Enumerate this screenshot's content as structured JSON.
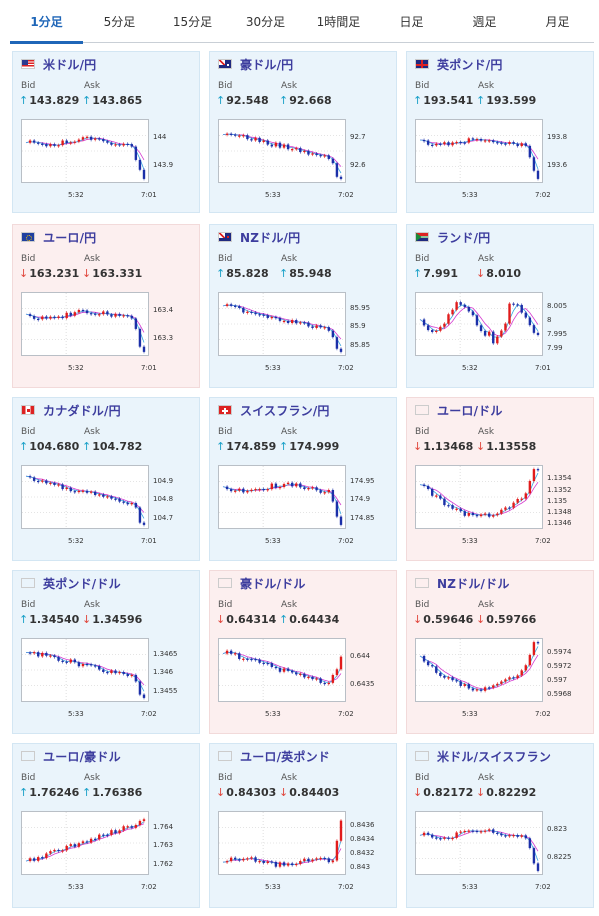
{
  "tabs": [
    {
      "label": "1分足",
      "active": true
    },
    {
      "label": "5分足",
      "active": false
    },
    {
      "label": "15分足",
      "active": false
    },
    {
      "label": "30分足",
      "active": false
    },
    {
      "label": "1時間足",
      "active": false
    },
    {
      "label": "日足",
      "active": false
    },
    {
      "label": "週足",
      "active": false
    },
    {
      "label": "月足",
      "active": false
    }
  ],
  "labels": {
    "bid": "Bid",
    "ask": "Ask"
  },
  "colors": {
    "up_arrow": "#1aa0c8",
    "down_arrow": "#e0463c",
    "up_bg": "#eaf4fb",
    "down_bg": "#fcefef",
    "candle_up": "#e11b1b",
    "candle_down": "#1b2fa8",
    "ma": "#d43bd0",
    "ma2": "#3aa6e0"
  },
  "cards": [
    {
      "pair": "米ドル/円",
      "flag": "us",
      "dir": "up",
      "bid": "143.829",
      "bid_dir": "up",
      "ask": "143.865",
      "ask_dir": "up",
      "yticks": [
        "144",
        "143.9"
      ],
      "x_start": "5:32",
      "x_end": "7:01",
      "shape": "flat_drop"
    },
    {
      "pair": "豪ドル/円",
      "flag": "au",
      "dir": "up",
      "bid": "92.548",
      "bid_dir": "up",
      "ask": "92.668",
      "ask_dir": "up",
      "yticks": [
        "92.7",
        "92.6"
      ],
      "x_start": "5:33",
      "x_end": "7:02",
      "shape": "down_drop"
    },
    {
      "pair": "英ポンド/円",
      "flag": "uk",
      "dir": "up",
      "bid": "193.541",
      "bid_dir": "up",
      "ask": "193.599",
      "ask_dir": "up",
      "yticks": [
        "193.8",
        "193.6"
      ],
      "x_start": "5:33",
      "x_end": "7:02",
      "shape": "flat_drop"
    },
    {
      "pair": "ユーロ/円",
      "flag": "eu",
      "dir": "down",
      "bid": "163.231",
      "bid_dir": "down",
      "ask": "163.331",
      "ask_dir": "down",
      "yticks": [
        "163.4",
        "163.3"
      ],
      "x_start": "5:32",
      "x_end": "7:01",
      "shape": "flat_drop"
    },
    {
      "pair": "NZドル/円",
      "flag": "nz",
      "dir": "up",
      "bid": "85.828",
      "bid_dir": "up",
      "ask": "85.948",
      "ask_dir": "up",
      "yticks": [
        "85.95",
        "85.9",
        "85.85"
      ],
      "x_start": "5:33",
      "x_end": "7:02",
      "shape": "down_drop"
    },
    {
      "pair": "ランド/円",
      "flag": "za",
      "dir": "up",
      "bid": "7.991",
      "bid_dir": "up",
      "ask": "8.010",
      "ask_dir": "down",
      "yticks": [
        "8.005",
        "8",
        "7.995",
        "7.99"
      ],
      "x_start": "5:32",
      "x_end": "7:01",
      "shape": "choppy"
    },
    {
      "pair": "カナダドル/円",
      "flag": "ca",
      "dir": "up",
      "bid": "104.680",
      "bid_dir": "up",
      "ask": "104.782",
      "ask_dir": "up",
      "yticks": [
        "104.9",
        "104.8",
        "104.7"
      ],
      "x_start": "5:32",
      "x_end": "7:01",
      "shape": "down_drop"
    },
    {
      "pair": "スイスフラン/円",
      "flag": "ch",
      "dir": "up",
      "bid": "174.859",
      "bid_dir": "up",
      "ask": "174.999",
      "ask_dir": "up",
      "yticks": [
        "174.95",
        "174.9",
        "174.85"
      ],
      "x_start": "5:33",
      "x_end": "7:02",
      "shape": "flat_drop"
    },
    {
      "pair": "ユーロ/ドル",
      "flag": "euus",
      "dir": "down",
      "bid": "1.13468",
      "bid_dir": "down",
      "ask": "1.13558",
      "ask_dir": "down",
      "yticks": [
        "1.1354",
        "1.1352",
        "1.135",
        "1.1348",
        "1.1346"
      ],
      "x_start": "5:33",
      "x_end": "7:02",
      "shape": "u_up"
    },
    {
      "pair": "英ポンド/ドル",
      "flag": "ukus",
      "dir": "up",
      "bid": "1.34540",
      "bid_dir": "up",
      "ask": "1.34596",
      "ask_dir": "down",
      "yticks": [
        "1.3465",
        "1.346",
        "1.3455"
      ],
      "x_start": "5:33",
      "x_end": "7:02",
      "shape": "down_drop"
    },
    {
      "pair": "豪ドル/ドル",
      "flag": "auus",
      "dir": "down",
      "bid": "0.64314",
      "bid_dir": "down",
      "ask": "0.64434",
      "ask_dir": "up",
      "yticks": [
        "0.644",
        "0.6435"
      ],
      "x_start": "5:33",
      "x_end": "7:02",
      "shape": "down_up"
    },
    {
      "pair": "NZドル/ドル",
      "flag": "nzus",
      "dir": "down",
      "bid": "0.59646",
      "bid_dir": "down",
      "ask": "0.59766",
      "ask_dir": "down",
      "yticks": [
        "0.5974",
        "0.5972",
        "0.597",
        "0.5968"
      ],
      "x_start": "5:33",
      "x_end": "7:02",
      "shape": "u_up"
    },
    {
      "pair": "ユーロ/豪ドル",
      "flag": "euau",
      "dir": "up",
      "bid": "1.76246",
      "bid_dir": "up",
      "ask": "1.76386",
      "ask_dir": "up",
      "yticks": [
        "1.764",
        "1.763",
        "1.762"
      ],
      "x_start": "5:33",
      "x_end": "7:02",
      "shape": "up_trend"
    },
    {
      "pair": "ユーロ/英ポンド",
      "flag": "euuk",
      "dir": "up",
      "bid": "0.84303",
      "bid_dir": "down",
      "ask": "0.84403",
      "ask_dir": "down",
      "yticks": [
        "0.8436",
        "0.8434",
        "0.8432",
        "0.843"
      ],
      "x_start": "5:33",
      "x_end": "7:02",
      "shape": "flat_spike"
    },
    {
      "pair": "米ドル/スイスフラン",
      "flag": "usch",
      "dir": "up",
      "bid": "0.82172",
      "bid_dir": "down",
      "ask": "0.82292",
      "ask_dir": "down",
      "yticks": [
        "0.823",
        "0.8225"
      ],
      "x_start": "5:33",
      "x_end": "7:02",
      "shape": "flat_drop"
    }
  ]
}
